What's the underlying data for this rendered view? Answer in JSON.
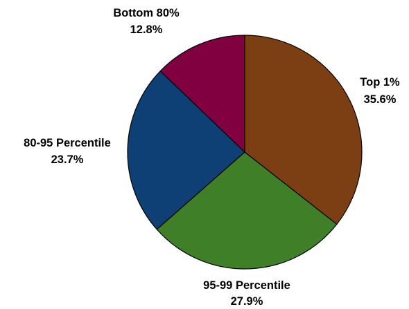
{
  "chart_data": {
    "type": "pie",
    "title": "",
    "start_angle_deg": 0,
    "direction": "clockwise",
    "slices": [
      {
        "label": "Top 1%",
        "value": 35.6,
        "value_label": "35.6%",
        "color": "#7b3f13"
      },
      {
        "label": "95-99 Percentile",
        "value": 27.9,
        "value_label": "27.9%",
        "color": "#3f7f28"
      },
      {
        "label": "80-95 Percentile",
        "value": 23.7,
        "value_label": "23.7%",
        "color": "#0e3f75"
      },
      {
        "label": "Bottom 80%",
        "value": 12.8,
        "value_label": "12.8%",
        "color": "#800040"
      }
    ],
    "legend": "none",
    "data_labels": "outside"
  }
}
